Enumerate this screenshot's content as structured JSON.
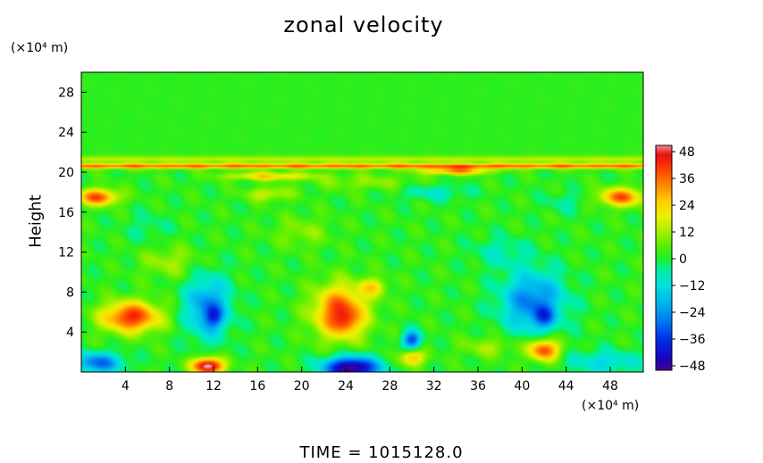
{
  "chart_data": {
    "type": "heatmap",
    "title": "zonal velocity",
    "ylabel": "Height",
    "y_unit": "(×10⁴ m)",
    "x_unit": "(×10⁴ m)",
    "footer": "TIME  =  1015128.0",
    "xlim": [
      0,
      51
    ],
    "ylim": [
      0,
      30
    ],
    "x_ticks": [
      "4",
      "8",
      "12",
      "16",
      "20",
      "24",
      "28",
      "32",
      "36",
      "40",
      "44",
      "48"
    ],
    "y_ticks": [
      "4",
      "8",
      "12",
      "16",
      "20",
      "24",
      "28"
    ],
    "colorbar": {
      "range": [
        -48,
        48
      ],
      "tick_labels": [
        "48",
        "36",
        "24",
        "12",
        "0",
        "−12",
        "−24",
        "−36",
        "−48"
      ],
      "stops": [
        {
          "v": -50,
          "c": "#6a0080"
        },
        {
          "v": -44,
          "c": "#1f00b4"
        },
        {
          "v": -36,
          "c": "#0026e6"
        },
        {
          "v": -28,
          "c": "#0070f0"
        },
        {
          "v": -20,
          "c": "#00b0f0"
        },
        {
          "v": -12,
          "c": "#00e0e0"
        },
        {
          "v": -5,
          "c": "#00f0a0"
        },
        {
          "v": 0,
          "c": "#22ee22"
        },
        {
          "v": 6,
          "c": "#60f000"
        },
        {
          "v": 12,
          "c": "#b0f000"
        },
        {
          "v": 18,
          "c": "#f0f000"
        },
        {
          "v": 24,
          "c": "#ffd000"
        },
        {
          "v": 30,
          "c": "#ff9000"
        },
        {
          "v": 38,
          "c": "#ff4000"
        },
        {
          "v": 44,
          "c": "#e81010"
        },
        {
          "v": 50,
          "c": "#ffc8c8"
        }
      ]
    },
    "field": {
      "background": 1,
      "features": [
        {
          "x": 4.5,
          "y": 5.5,
          "sx": 2.6,
          "sy": 1.5,
          "v": 40
        },
        {
          "x": 1.5,
          "y": 0.9,
          "sx": 2.2,
          "sy": 1.0,
          "v": -30
        },
        {
          "x": 11.5,
          "y": 0.6,
          "sx": 1.4,
          "sy": 0.8,
          "v": 52
        },
        {
          "x": 11.5,
          "y": 6.5,
          "sx": 2.0,
          "sy": 3.0,
          "v": -26
        },
        {
          "x": 12.0,
          "y": 5.5,
          "sx": 0.8,
          "sy": 1.0,
          "v": -18
        },
        {
          "x": 23.5,
          "y": 6.0,
          "sx": 2.4,
          "sy": 2.6,
          "v": 38
        },
        {
          "x": 24.0,
          "y": 5.0,
          "sx": 1.0,
          "sy": 1.0,
          "v": 10
        },
        {
          "x": 26.5,
          "y": 8.5,
          "sx": 1.2,
          "sy": 0.9,
          "v": 18
        },
        {
          "x": 24.5,
          "y": 0.4,
          "sx": 2.5,
          "sy": 1.1,
          "v": -52
        },
        {
          "x": 30.0,
          "y": 3.2,
          "sx": 0.8,
          "sy": 0.9,
          "v": -34
        },
        {
          "x": 30.0,
          "y": 1.4,
          "sx": 1.1,
          "sy": 0.8,
          "v": 26
        },
        {
          "x": 41.0,
          "y": 7.0,
          "sx": 2.8,
          "sy": 3.0,
          "v": -28
        },
        {
          "x": 42.0,
          "y": 5.5,
          "sx": 0.9,
          "sy": 1.0,
          "v": -18
        },
        {
          "x": 42.0,
          "y": 2.2,
          "sx": 1.4,
          "sy": 1.1,
          "v": 38
        },
        {
          "x": 47.5,
          "y": 1.0,
          "sx": 3.5,
          "sy": 1.1,
          "v": -14
        },
        {
          "x": 37.0,
          "y": 2.5,
          "sx": 2.5,
          "sy": 1.0,
          "v": 10
        },
        {
          "x": 1.5,
          "y": 17.5,
          "sx": 1.8,
          "sy": 0.8,
          "v": 36
        },
        {
          "x": 49.0,
          "y": 17.5,
          "sx": 2.0,
          "sy": 0.9,
          "v": 34
        },
        {
          "x": 17.0,
          "y": 19.6,
          "sx": 4.0,
          "sy": 0.4,
          "v": 22
        },
        {
          "x": 34.0,
          "y": 20.1,
          "sx": 3.0,
          "sy": 0.35,
          "v": 30
        },
        {
          "x": 26.0,
          "y": 19.0,
          "sx": 5.0,
          "sy": 0.8,
          "v": 8
        },
        {
          "x": 17.0,
          "y": 17.8,
          "sx": 2.0,
          "sy": 0.7,
          "v": 14
        },
        {
          "x": 32.0,
          "y": 18.0,
          "sx": 3.0,
          "sy": 0.8,
          "v": -10
        },
        {
          "x": 20.0,
          "y": 14.0,
          "sx": 2.5,
          "sy": 1.5,
          "v": 8
        },
        {
          "x": 8.0,
          "y": 11.0,
          "sx": 2.5,
          "sy": 1.5,
          "v": 10
        },
        {
          "x": 38.0,
          "y": 12.0,
          "sx": 2.5,
          "sy": 1.5,
          "v": -8
        },
        {
          "x": 44.0,
          "y": 17.0,
          "sx": 2.0,
          "sy": 1.0,
          "v": -6
        },
        {
          "x": 6.0,
          "y": 14.5,
          "sx": 2.0,
          "sy": 1.5,
          "v": -5
        }
      ],
      "bands": [
        {
          "y": 20.6,
          "sy": 0.25,
          "v": 34
        },
        {
          "y": 21.3,
          "sy": 0.35,
          "v": 12
        }
      ]
    }
  }
}
